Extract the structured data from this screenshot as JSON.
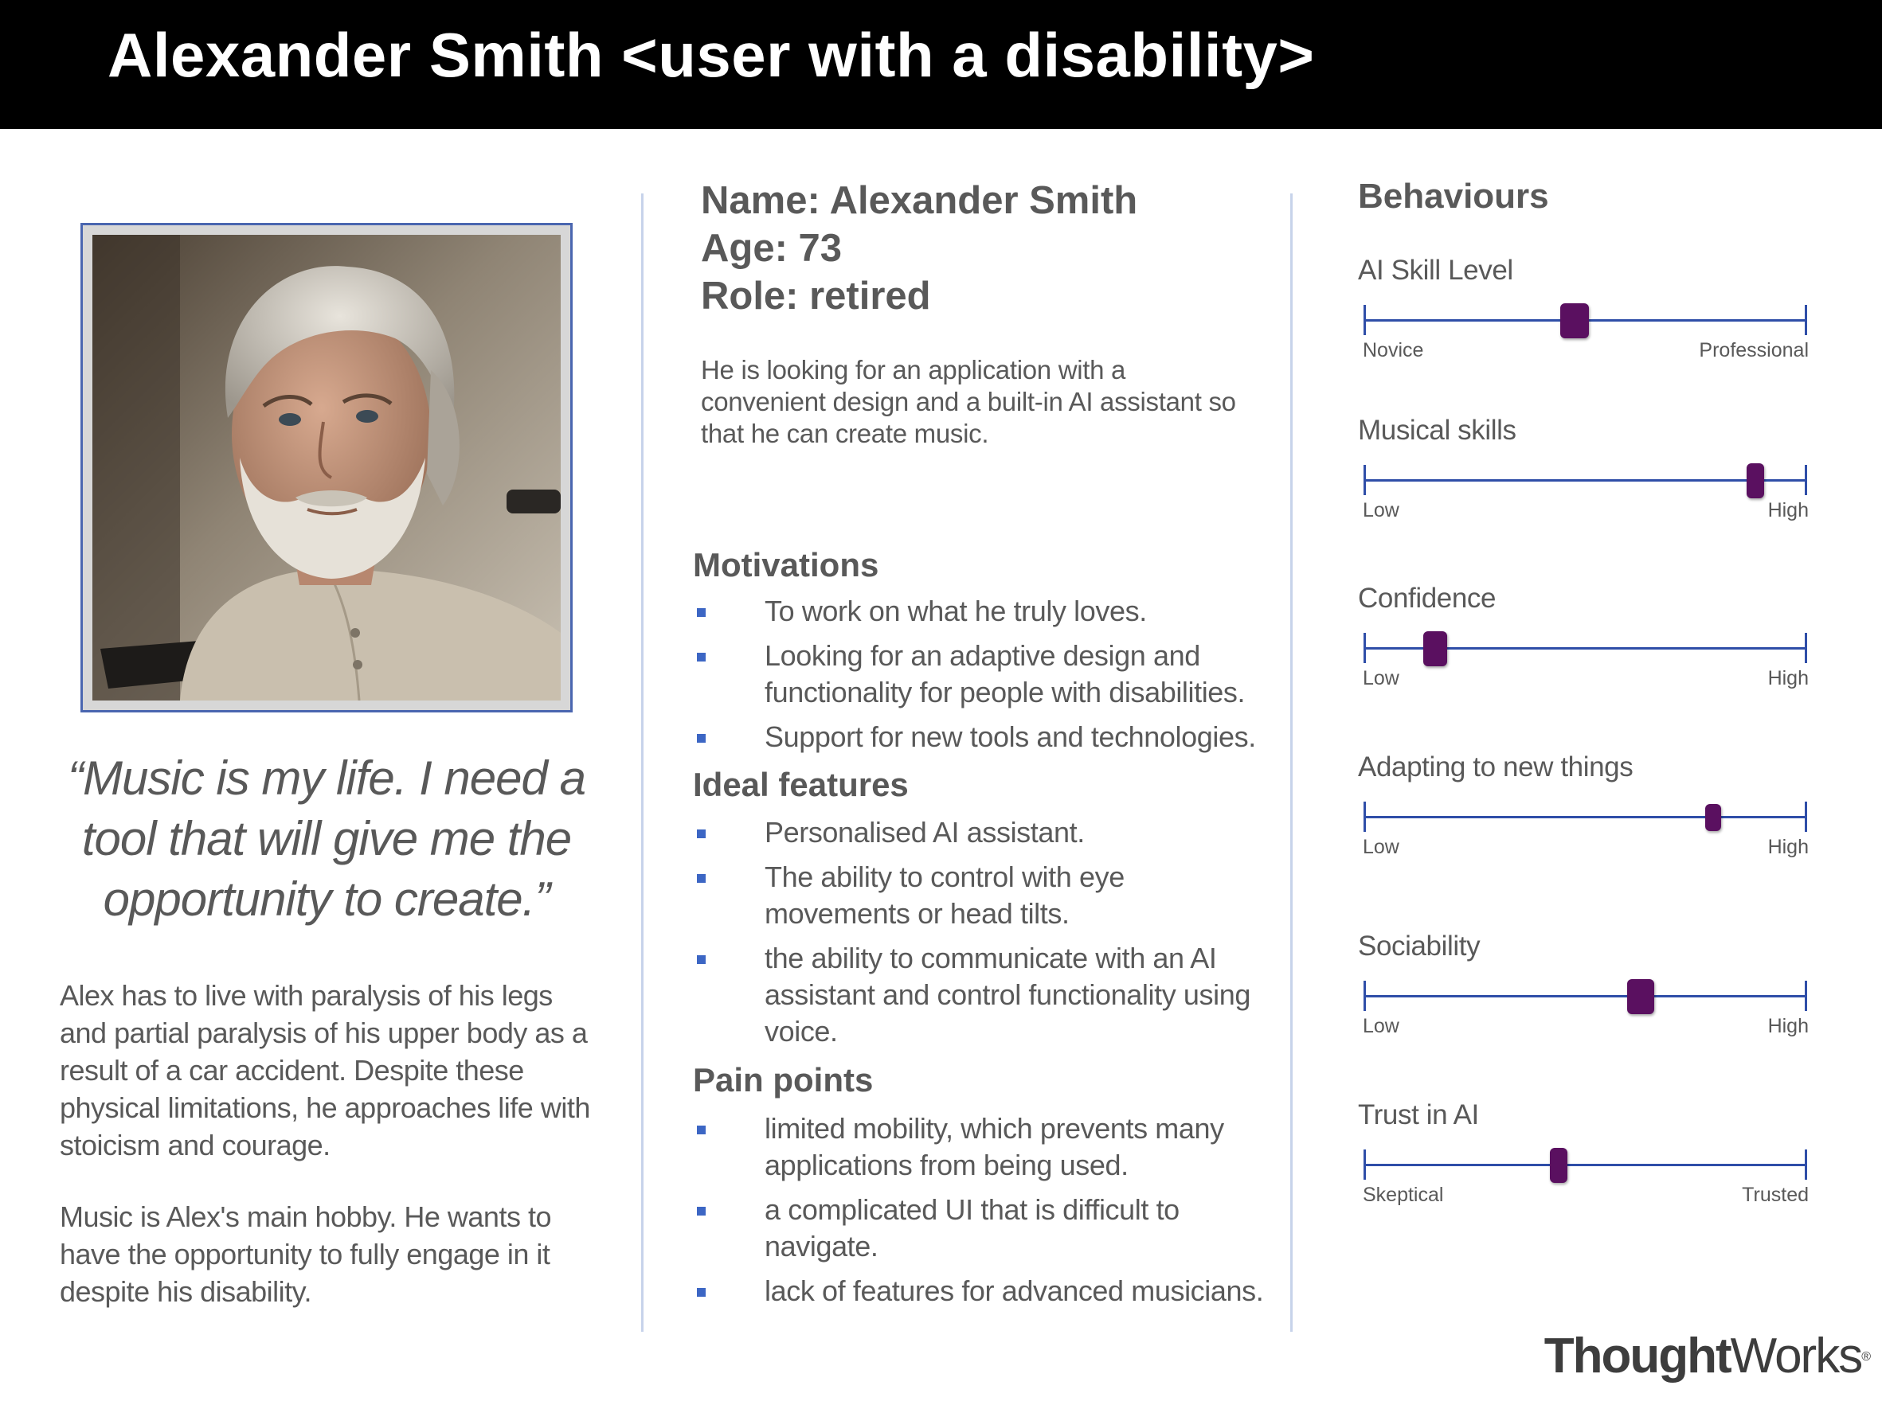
{
  "header": {
    "title": "Alexander Smith <user with a disability>"
  },
  "left": {
    "quote": "“Music is my life. I need a tool that will give me the opportunity to create.”",
    "bio": [
      "Alex has to live with paralysis of his legs and partial paralysis of his upper body as a result of a car accident. Despite these physical limitations, he approaches life with stoicism and courage.",
      "Music is Alex's main hobby. He wants to have the opportunity to fully engage in it despite his disability."
    ]
  },
  "profile": {
    "name_line": "Name: Alexander Smith",
    "age_line": "Age: 73",
    "role_line": "Role: retired",
    "summary": "He is looking for an application with a convenient design and a built-in AI assistant so that he can create music."
  },
  "sections": {
    "motivations": {
      "title": "Motivations",
      "items": [
        "To work on what he truly loves.",
        "Looking for an adaptive design and functionality for people with disabilities.",
        "Support for new tools and technologies."
      ]
    },
    "ideal_features": {
      "title": "Ideal features",
      "items": [
        "Personalised AI assistant.",
        "The ability to control with eye movements or head tilts.",
        "the ability to communicate with an AI assistant and control functionality using voice."
      ]
    },
    "pain_points": {
      "title": "Pain points",
      "items": [
        "limited mobility, which prevents many applications from being used.",
        "a complicated UI that is difficult to navigate.",
        "lack of features for advanced musicians."
      ]
    }
  },
  "behaviours": {
    "title": "Behaviours",
    "thumb_color": "#5a1060",
    "line_color": "#2f4ea8",
    "scales": [
      {
        "label": "AI Skill Level",
        "low": "Novice",
        "high": "Professional",
        "value": 0.475
      },
      {
        "label": "Musical skills",
        "low": "Low",
        "high": "High",
        "value": 0.885
      },
      {
        "label": "Confidence",
        "low": "Low",
        "high": "High",
        "value": 0.16
      },
      {
        "label": "Adapting to new things",
        "low": "Low",
        "high": "High",
        "value": 0.79
      },
      {
        "label": "Sociability",
        "low": "Low",
        "high": "High",
        "value": 0.625
      },
      {
        "label": "Trust in AI",
        "low": "Skeptical",
        "high": "Trusted",
        "value": 0.44
      }
    ]
  },
  "brand": {
    "logo_bold": "Thought",
    "logo_light": "Works",
    "logo_mark": "®"
  }
}
